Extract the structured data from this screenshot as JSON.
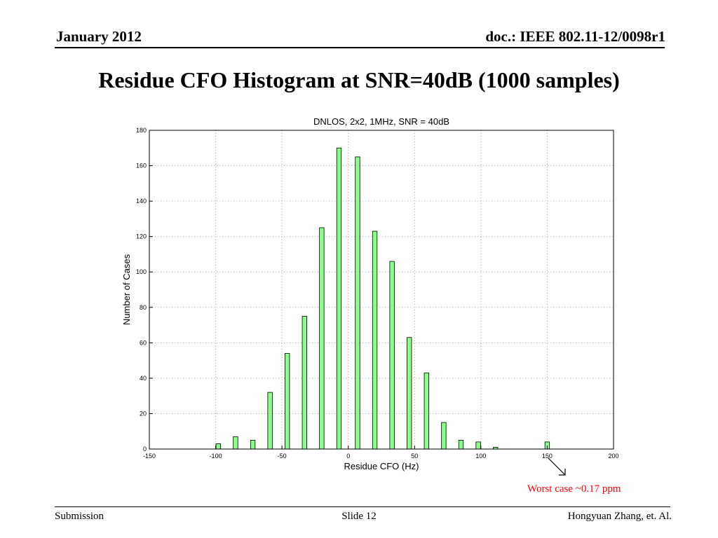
{
  "header": {
    "date": "January 2012",
    "doc_id": "doc.: IEEE 802.11-12/0098r1"
  },
  "slide": {
    "title": "Residue CFO Histogram at SNR=40dB (1000 samples)"
  },
  "chart_data": {
    "type": "bar",
    "title": "DNLOS, 2x2, 1MHz, SNR = 40dB",
    "xlabel": "Residue CFO (Hz)",
    "ylabel": "Number of Cases",
    "xlim": [
      -150,
      200
    ],
    "ylim": [
      0,
      180
    ],
    "xticks": [
      -150,
      -100,
      -50,
      0,
      50,
      100,
      150,
      200
    ],
    "yticks": [
      0,
      20,
      40,
      60,
      80,
      100,
      120,
      140,
      160,
      180
    ],
    "grid": true,
    "bar_color": "#88ff88",
    "x": [
      -98,
      -85,
      -72,
      -59,
      -46,
      -33,
      -20,
      -7,
      7,
      20,
      33,
      46,
      59,
      72,
      85,
      98,
      111,
      150
    ],
    "values": [
      3,
      7,
      5,
      32,
      54,
      75,
      125,
      170,
      165,
      123,
      106,
      63,
      43,
      15,
      5,
      4,
      1,
      4
    ]
  },
  "annotation": {
    "text": "Worst case ~0.17 ppm",
    "color": "#ff0000"
  },
  "footer": {
    "left": "Submission",
    "center": "Slide 12",
    "right": "Hongyuan Zhang, et. Al."
  }
}
